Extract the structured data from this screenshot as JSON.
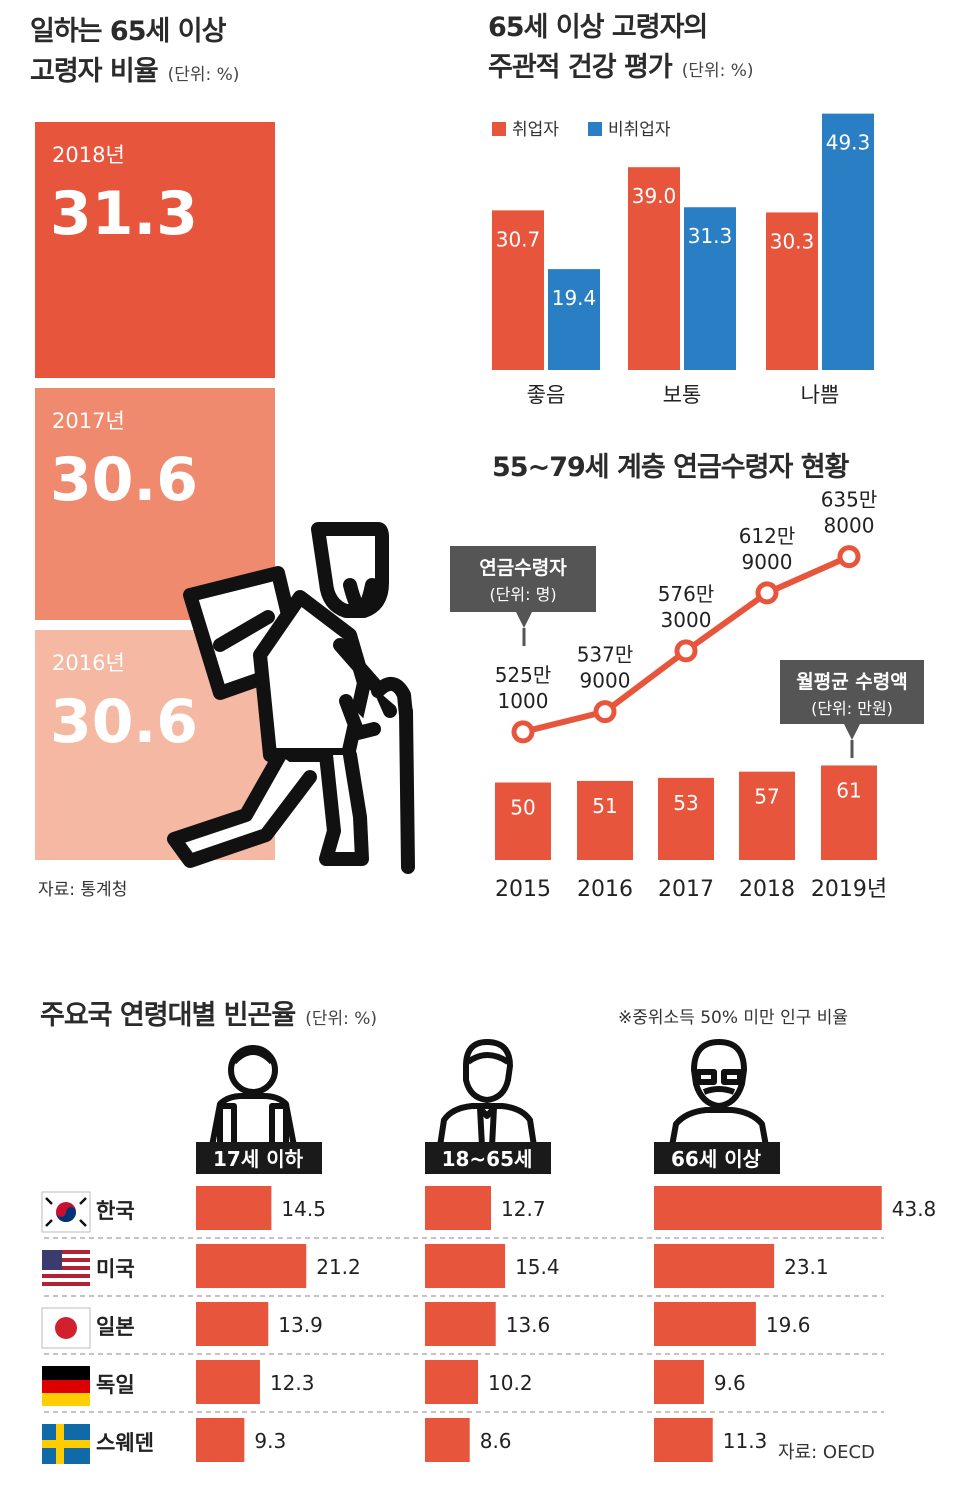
{
  "colors": {
    "red": "#e8553d",
    "blue": "#2a7fc4",
    "block_2018": "#e8553d",
    "block_2017": "#f08a6e",
    "block_2016": "#f5b8a2",
    "callout_bg": "#555555"
  },
  "working_elderly": {
    "title_line1": "일하는 65세 이상",
    "title_line2": "고령자 비율",
    "unit": "(단위: %)",
    "source": "자료: 통계청",
    "pictogram": "elderly-worker-with-cane-icon"
  },
  "health": {
    "title_line1": "65세 이상 고령자의",
    "title_line2": "주관적 건강 평가",
    "unit": "(단위: %)"
  },
  "pension": {
    "title": "55~79세 계층 연금수령자 현황",
    "callout_recipients_title": "연금수령자",
    "callout_recipients_unit": "(단위: 명)",
    "callout_amount_title": "월평균 수령액",
    "callout_amount_unit": "(단위: 만원)"
  },
  "poverty": {
    "title": "주요국 연령대별 빈곤율",
    "unit": "(단위: %)",
    "note": "※중위소득 50% 미만 인구 비율",
    "source": "자료: OECD",
    "group_icons": [
      "student-with-backpack-icon",
      "office-worker-with-tie-icon",
      "elderly-man-with-mustache-icon"
    ],
    "flag_icons": [
      "korea-flag-icon",
      "usa-flag-icon",
      "japan-flag-icon",
      "germany-flag-icon",
      "sweden-flag-icon"
    ]
  },
  "chart_data": [
    {
      "type": "bar",
      "categories": [
        "2018년",
        "2017년",
        "2016년"
      ],
      "values": [
        31.3,
        30.6,
        30.6
      ]
    },
    {
      "type": "bar",
      "categories": [
        "좋음",
        "보통",
        "나쁨"
      ],
      "series": [
        {
          "name": "취업자",
          "values": [
            30.7,
            39.0,
            30.3
          ]
        },
        {
          "name": "비취업자",
          "values": [
            19.4,
            31.3,
            49.3
          ]
        }
      ],
      "legend_position": "top-left"
    },
    {
      "type": "line",
      "x": [
        "2015",
        "2016",
        "2017",
        "2018",
        "2019년"
      ],
      "values": [
        5251000,
        5379000,
        5763000,
        6129000,
        6358000
      ],
      "labels": [
        [
          "525만",
          "1000"
        ],
        [
          "537만",
          "9000"
        ],
        [
          "576만",
          "3000"
        ],
        [
          "612만",
          "9000"
        ],
        [
          "635만",
          "8000"
        ]
      ]
    },
    {
      "type": "bar",
      "categories": [
        "2015",
        "2016",
        "2017",
        "2018",
        "2019년"
      ],
      "values": [
        50,
        51,
        53,
        57,
        61
      ]
    },
    {
      "type": "bar",
      "orientation": "horizontal",
      "categories": [
        "한국",
        "미국",
        "일본",
        "독일",
        "스웨덴"
      ],
      "series": [
        {
          "name": "17세 이하",
          "values": [
            14.5,
            21.2,
            13.9,
            12.3,
            9.3
          ]
        },
        {
          "name": "18~65세",
          "values": [
            12.7,
            15.4,
            13.6,
            10.2,
            8.6
          ]
        },
        {
          "name": "66세 이상",
          "values": [
            43.8,
            23.1,
            19.6,
            9.6,
            11.3
          ]
        }
      ]
    }
  ]
}
